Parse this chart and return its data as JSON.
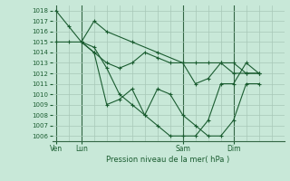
{
  "bg_color": "#c8e8d8",
  "grid_color": "#a8c8b8",
  "line_color": "#1a5c30",
  "marker_color": "#1a5c30",
  "xlabel": "Pression niveau de la mer( hPa )",
  "ylim": [
    1005.5,
    1018.5
  ],
  "yticks": [
    1006,
    1007,
    1008,
    1009,
    1010,
    1011,
    1012,
    1013,
    1014,
    1015,
    1016,
    1017,
    1018
  ],
  "xtick_labels": [
    "Ven",
    "Lun",
    "Sam",
    "Dim"
  ],
  "xtick_positions": [
    0,
    2,
    10,
    14
  ],
  "vline_positions": [
    0,
    2,
    10,
    14
  ],
  "xlim": [
    -0.3,
    18
  ],
  "series": [
    {
      "x": [
        0,
        1,
        2,
        3,
        4,
        6,
        8,
        10,
        11,
        12,
        13,
        14,
        15,
        16
      ],
      "y": [
        1018,
        1016.5,
        1015,
        1017,
        1016,
        1015,
        1014,
        1013,
        1011,
        1011.5,
        1013,
        1013,
        1012,
        1012
      ]
    },
    {
      "x": [
        0,
        1,
        2,
        3,
        4,
        5,
        6,
        7,
        8,
        9,
        10,
        11,
        12,
        13,
        14,
        15,
        16
      ],
      "y": [
        1015,
        1015,
        1015,
        1014,
        1013,
        1012.5,
        1013,
        1014,
        1013.5,
        1013,
        1013,
        1013,
        1013,
        1013,
        1012,
        1012,
        1012
      ]
    },
    {
      "x": [
        2,
        3,
        4,
        5,
        6,
        7,
        8,
        9,
        10,
        11,
        12,
        13,
        14,
        15,
        16
      ],
      "y": [
        1015,
        1014.5,
        1012.5,
        1010,
        1009,
        1008,
        1010.5,
        1010,
        1008,
        1007,
        1006,
        1006,
        1007.5,
        1011,
        1011
      ]
    },
    {
      "x": [
        2,
        3,
        4,
        5,
        6,
        7,
        8,
        9,
        10,
        11,
        12,
        13,
        14,
        15,
        16
      ],
      "y": [
        1015,
        1014,
        1009,
        1009.5,
        1010.5,
        1008,
        1007,
        1006,
        1006,
        1006,
        1007.5,
        1011,
        1011,
        1013,
        1012
      ]
    }
  ]
}
